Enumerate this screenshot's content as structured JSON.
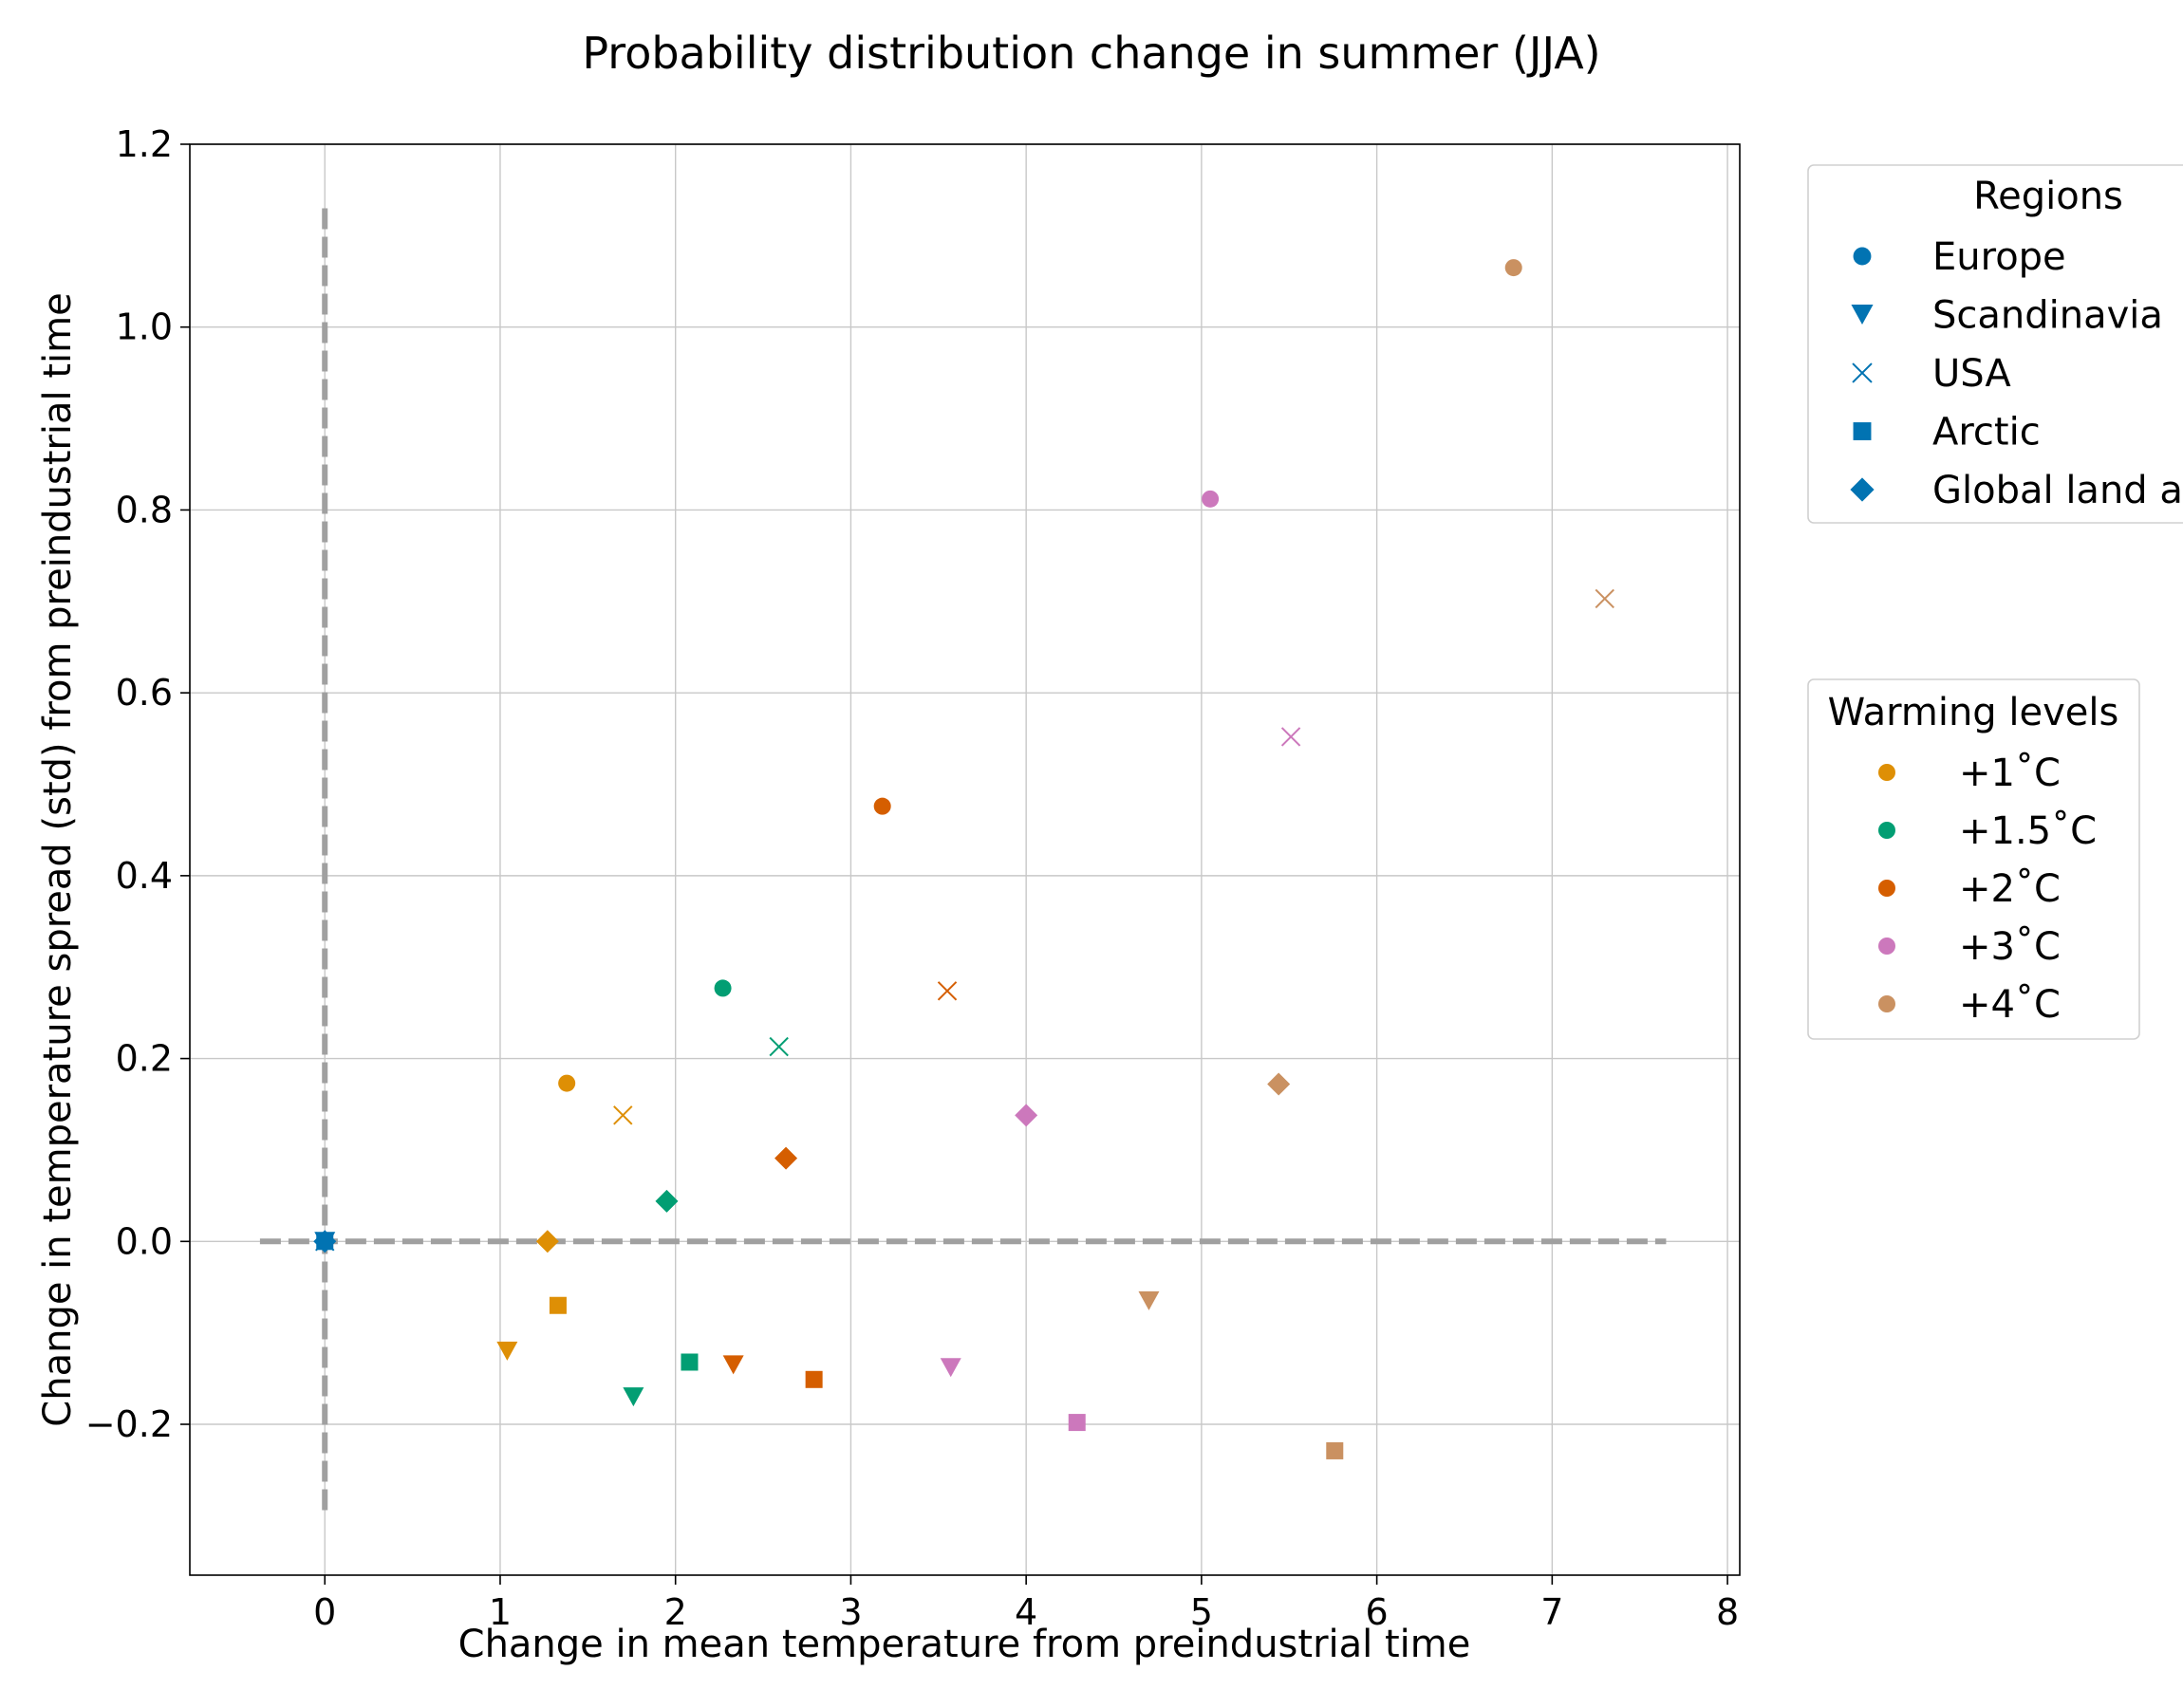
{
  "chart_data": {
    "type": "scatter",
    "title": "Probability distribution change in summer (JJA)",
    "xlabel": "Change in mean temperature from preindustrial time",
    "ylabel": "Change in temperature spread (std) from preindustrial time",
    "xlim": [
      -0.77,
      8.07
    ],
    "ylim": [
      -0.365,
      1.2
    ],
    "xticks": [
      0,
      1,
      2,
      3,
      4,
      5,
      6,
      7,
      8
    ],
    "yticks": [
      -0.2,
      0.0,
      0.2,
      0.4,
      0.6,
      0.8,
      1.0,
      1.2
    ],
    "xtick_labels": [
      "0",
      "1",
      "2",
      "3",
      "4",
      "5",
      "6",
      "7",
      "8"
    ],
    "ytick_labels": [
      "−0.2",
      "0.0",
      "0.2",
      "0.4",
      "0.6",
      "0.8",
      "1.0",
      "1.2"
    ],
    "grid": true,
    "reference_lines": {
      "x": 0,
      "y": 0,
      "style": "dashed",
      "color": "#a0a0a0"
    },
    "legend_regions": {
      "title": "Regions",
      "placement": "outside-upper-right",
      "entries": [
        {
          "label": "Europe",
          "marker": "circle"
        },
        {
          "label": "Scandinavia",
          "marker": "triangle-down"
        },
        {
          "label": "USA",
          "marker": "x"
        },
        {
          "label": "Arctic",
          "marker": "square"
        },
        {
          "label": "Global land a",
          "marker": "diamond"
        }
      ]
    },
    "legend_levels": {
      "title": "Warming levels",
      "placement": "outside-right",
      "entries": [
        {
          "label": "+1˚C",
          "color": "#de8f05"
        },
        {
          "label": "+1.5˚C",
          "color": "#029e73"
        },
        {
          "label": "+2˚C",
          "color": "#d55e00"
        },
        {
          "label": "+3˚C",
          "color": "#cc78bc"
        },
        {
          "label": "+4˚C",
          "color": "#ca9161"
        }
      ]
    },
    "legend_marker_color": "#0173b2",
    "series": [
      {
        "color": "#0173b2",
        "points": [
          {
            "x": 0.0,
            "y": 0.0,
            "marker": "circle"
          },
          {
            "x": 0.0,
            "y": 0.0,
            "marker": "triangle-down"
          },
          {
            "x": 0.0,
            "y": 0.0,
            "marker": "x"
          },
          {
            "x": 0.0,
            "y": 0.0,
            "marker": "square"
          },
          {
            "x": 0.0,
            "y": 0.0,
            "marker": "diamond"
          }
        ]
      },
      {
        "color": "#de8f05",
        "points": [
          {
            "x": 1.38,
            "y": 0.173,
            "marker": "circle"
          },
          {
            "x": 1.04,
            "y": -0.12,
            "marker": "triangle-down"
          },
          {
            "x": 1.7,
            "y": 0.138,
            "marker": "x"
          },
          {
            "x": 1.33,
            "y": -0.07,
            "marker": "square"
          },
          {
            "x": 1.27,
            "y": 0.0,
            "marker": "diamond"
          }
        ]
      },
      {
        "color": "#029e73",
        "points": [
          {
            "x": 2.27,
            "y": 0.277,
            "marker": "circle"
          },
          {
            "x": 1.76,
            "y": -0.17,
            "marker": "triangle-down"
          },
          {
            "x": 2.59,
            "y": 0.213,
            "marker": "x"
          },
          {
            "x": 2.08,
            "y": -0.132,
            "marker": "square"
          },
          {
            "x": 1.95,
            "y": 0.044,
            "marker": "diamond"
          }
        ]
      },
      {
        "color": "#d55e00",
        "points": [
          {
            "x": 3.18,
            "y": 0.476,
            "marker": "circle"
          },
          {
            "x": 2.33,
            "y": -0.135,
            "marker": "triangle-down"
          },
          {
            "x": 3.55,
            "y": 0.274,
            "marker": "x"
          },
          {
            "x": 2.79,
            "y": -0.151,
            "marker": "square"
          },
          {
            "x": 2.63,
            "y": 0.091,
            "marker": "diamond"
          }
        ]
      },
      {
        "color": "#cc78bc",
        "points": [
          {
            "x": 5.05,
            "y": 0.812,
            "marker": "circle"
          },
          {
            "x": 3.57,
            "y": -0.138,
            "marker": "triangle-down"
          },
          {
            "x": 5.51,
            "y": 0.552,
            "marker": "x"
          },
          {
            "x": 4.29,
            "y": -0.198,
            "marker": "square"
          },
          {
            "x": 4.0,
            "y": 0.138,
            "marker": "diamond"
          }
        ]
      },
      {
        "color": "#ca9161",
        "points": [
          {
            "x": 6.78,
            "y": 1.065,
            "marker": "circle"
          },
          {
            "x": 4.7,
            "y": -0.065,
            "marker": "triangle-down"
          },
          {
            "x": 7.3,
            "y": 0.703,
            "marker": "x"
          },
          {
            "x": 5.76,
            "y": -0.229,
            "marker": "square"
          },
          {
            "x": 5.44,
            "y": 0.172,
            "marker": "diamond"
          }
        ]
      }
    ]
  }
}
